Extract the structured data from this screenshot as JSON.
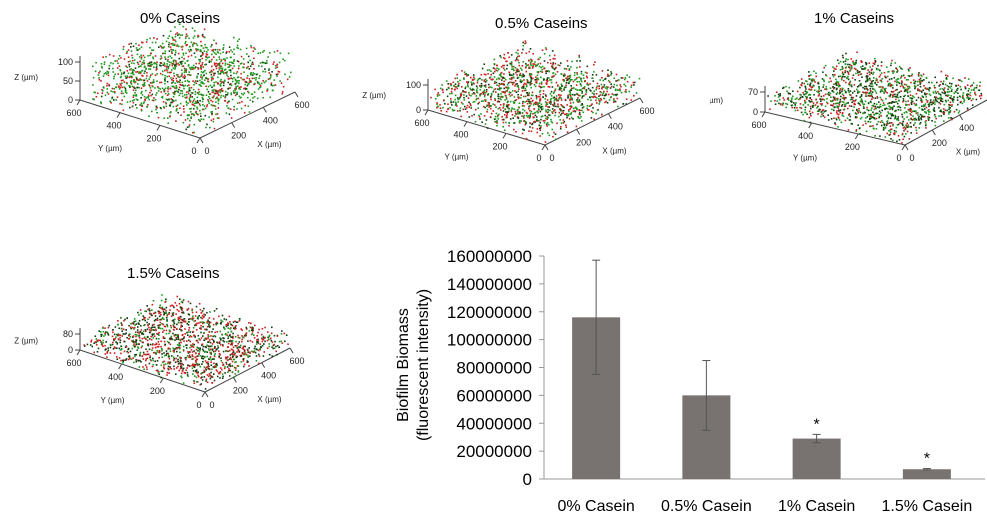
{
  "panels": [
    {
      "title": "0% Caseins",
      "z_ticks": [
        "100",
        "50",
        "0"
      ],
      "y_ticks": [
        "600",
        "400",
        "200",
        "0"
      ],
      "x_ticks": [
        "0",
        "200",
        "400",
        "600"
      ],
      "z_label": "Z (µm)",
      "y_label": "Y (µm)",
      "x_label": "X (µm)",
      "colors": {
        "green": "#1f9a1f",
        "red": "#cc1f1f",
        "dark": "#0f3d0f"
      }
    },
    {
      "title": "0.5% Caseins",
      "z_ticks": [
        "100",
        "0"
      ],
      "y_ticks": [
        "600",
        "400",
        "200",
        "0"
      ],
      "x_ticks": [
        "0",
        "200",
        "400",
        "600"
      ],
      "z_label": "Z (µm)",
      "y_label": "Y (µm)",
      "x_label": "X (µm)",
      "colors": {
        "green": "#1f9a1f",
        "red": "#cc1f1f",
        "dark": "#0f3d0f"
      }
    },
    {
      "title": "1% Caseins",
      "z_ticks": [
        "70",
        "0"
      ],
      "y_ticks": [
        "600",
        "400",
        "200",
        "0"
      ],
      "x_ticks": [
        "0",
        "200",
        "400",
        "600"
      ],
      "z_label": "Z (µm)",
      "y_label": "Y (µm)",
      "x_label": "X (µm)",
      "colors": {
        "green": "#1f9a1f",
        "red": "#cc1f1f",
        "dark": "#0f3d0f"
      }
    },
    {
      "title": "1.5% Caseins",
      "z_ticks": [
        "80",
        "0"
      ],
      "y_ticks": [
        "600",
        "400",
        "200",
        "0"
      ],
      "x_ticks": [
        "0",
        "200",
        "400",
        "600"
      ],
      "z_label": "Z (µm)",
      "y_label": "Y (µm)",
      "x_label": "X (µm)",
      "colors": {
        "green": "#1f9a1f",
        "red": "#cc1f1f",
        "dark": "#0f3d0f"
      }
    }
  ],
  "chart_data": {
    "type": "bar",
    "categories": [
      "0% Casein",
      "0.5% Casein",
      "1% Casein",
      "1.5% Casein"
    ],
    "values": [
      116000000,
      60000000,
      29000000,
      7000000
    ],
    "errors": [
      41000000,
      25000000,
      3000000,
      500000
    ],
    "significance": [
      "",
      "",
      "*",
      "*"
    ],
    "ylabel": [
      "Biofilm Biomass",
      "(fluorescent intensity)"
    ],
    "ylim": [
      0,
      160000000
    ],
    "yticks": [
      "0",
      "20000000",
      "40000000",
      "60000000",
      "80000000",
      "100000000",
      "120000000",
      "140000000",
      "160000000"
    ],
    "grid": false,
    "bar_color": "#787270"
  }
}
